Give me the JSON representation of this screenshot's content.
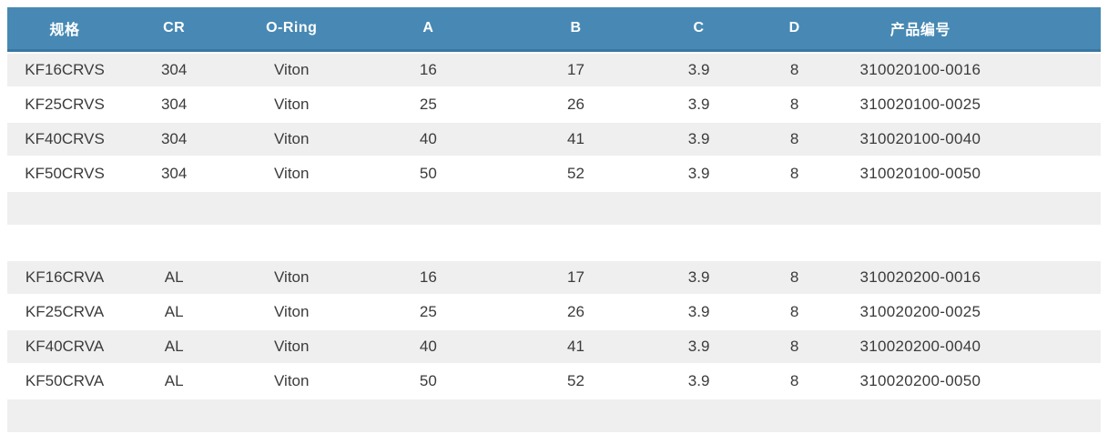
{
  "colors": {
    "header_bg": "#4789b4",
    "header_border": "#3a76a1",
    "header_text": "#ffffff",
    "row_alt_bg": "#efefef",
    "row_bg": "#ffffff",
    "body_text": "#3b3b3b"
  },
  "table": {
    "columns": [
      "规格",
      "CR",
      "O-Ring",
      "A",
      "B",
      "C",
      "D",
      "产品编号"
    ],
    "rows": [
      [
        "KF16CRVS",
        "304",
        "Viton",
        "16",
        "17",
        "3.9",
        "8",
        "310020100-0016"
      ],
      [
        "KF25CRVS",
        "304",
        "Viton",
        "25",
        "26",
        "3.9",
        "8",
        "310020100-0025"
      ],
      [
        "KF40CRVS",
        "304",
        "Viton",
        "40",
        "41",
        "3.9",
        "8",
        "310020100-0040"
      ],
      [
        "KF50CRVS",
        "304",
        "Viton",
        "50",
        "52",
        "3.9",
        "8",
        "310020100-0050"
      ],
      [
        "",
        "",
        "",
        "",
        "",
        "",
        "",
        ""
      ],
      [
        "",
        "",
        "",
        "",
        "",
        "",
        "",
        ""
      ],
      [
        "KF16CRVA",
        "AL",
        "Viton",
        "16",
        "17",
        "3.9",
        "8",
        "310020200-0016"
      ],
      [
        "KF25CRVA",
        "AL",
        "Viton",
        "25",
        "26",
        "3.9",
        "8",
        "310020200-0025"
      ],
      [
        "KF40CRVA",
        "AL",
        "Viton",
        "40",
        "41",
        "3.9",
        "8",
        "310020200-0040"
      ],
      [
        "KF50CRVA",
        "AL",
        "Viton",
        "50",
        "52",
        "3.9",
        "8",
        "310020200-0050"
      ],
      [
        "",
        "",
        "",
        "",
        "",
        "",
        "",
        ""
      ]
    ]
  }
}
